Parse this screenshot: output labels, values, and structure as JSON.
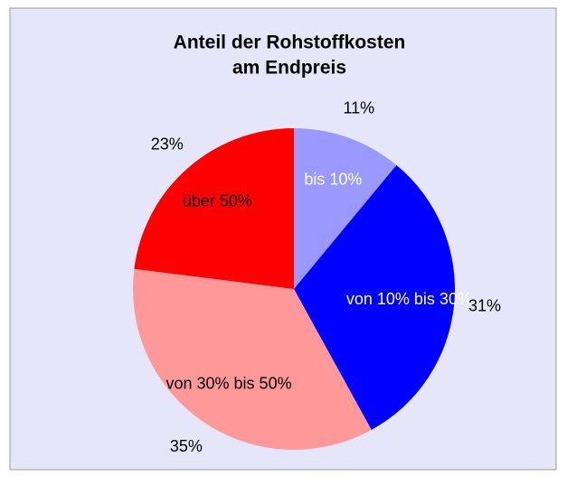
{
  "chart_data": {
    "type": "pie",
    "title": [
      "Anteil der Rohstoffkosten",
      "am Endpreis"
    ],
    "categories": [
      "bis 10%",
      "von 10% bis 30%",
      "von 30% bis 50%",
      "über 50%"
    ],
    "values": [
      11,
      31,
      35,
      23
    ],
    "value_labels": [
      "11%",
      "31%",
      "35%",
      "23%"
    ],
    "colors": [
      "#9999ff",
      "#0000ff",
      "#ff9999",
      "#ff0000"
    ],
    "label_colors": [
      "#ffffff",
      "#ffffff",
      "#000000",
      "#000000"
    ]
  }
}
